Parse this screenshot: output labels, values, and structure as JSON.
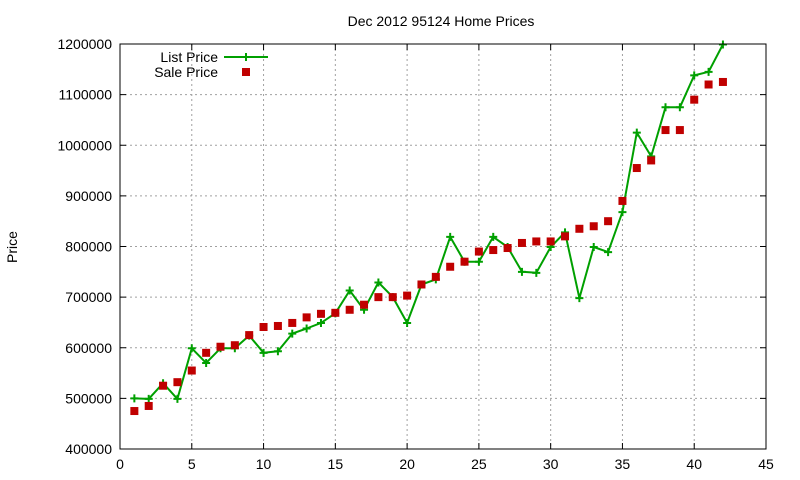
{
  "chart_data": {
    "type": "line",
    "title": "Dec 2012 95124 Home Prices",
    "xlabel": "",
    "ylabel": "Price",
    "xlim": [
      0,
      45
    ],
    "ylim": [
      400000,
      1200000
    ],
    "xticks": [
      0,
      5,
      10,
      15,
      20,
      25,
      30,
      35,
      40,
      45
    ],
    "yticks": [
      400000,
      500000,
      600000,
      700000,
      800000,
      900000,
      1000000,
      1100000,
      1200000
    ],
    "grid": true,
    "legend_position": "top-left",
    "series": [
      {
        "name": "List Price",
        "style": "line-plus",
        "color": "#00a000",
        "x": [
          1,
          2,
          3,
          4,
          5,
          6,
          7,
          8,
          9,
          10,
          11,
          12,
          13,
          14,
          15,
          16,
          17,
          18,
          19,
          20,
          21,
          22,
          23,
          24,
          25,
          26,
          27,
          28,
          29,
          30,
          31,
          32,
          33,
          34,
          35,
          36,
          37,
          38,
          39,
          40,
          41,
          42
        ],
        "y": [
          500000,
          499000,
          530000,
          499000,
          599000,
          570000,
          599000,
          599000,
          624000,
          590000,
          593000,
          628000,
          638000,
          649000,
          668000,
          713000,
          675000,
          729000,
          700000,
          649000,
          725000,
          735000,
          819000,
          770000,
          770000,
          819000,
          799000,
          750000,
          748000,
          799000,
          828000,
          698000,
          799000,
          789000,
          868000,
          1025000,
          978000,
          1075000,
          1075000,
          1138000,
          1145000,
          1199000
        ]
      },
      {
        "name": "Sale Price",
        "style": "square",
        "color": "#c00000",
        "x": [
          1,
          2,
          3,
          4,
          5,
          6,
          7,
          8,
          9,
          10,
          11,
          12,
          13,
          14,
          15,
          16,
          17,
          18,
          19,
          20,
          21,
          22,
          23,
          24,
          25,
          26,
          27,
          28,
          29,
          30,
          31,
          32,
          33,
          34,
          35,
          36,
          37,
          38,
          39,
          40,
          41,
          42
        ],
        "y": [
          475000,
          485000,
          525000,
          532000,
          555000,
          590000,
          602000,
          605000,
          625000,
          641000,
          643000,
          649000,
          660000,
          667000,
          669000,
          675000,
          685000,
          700000,
          700000,
          703000,
          725000,
          740000,
          760000,
          770000,
          790000,
          793000,
          797000,
          807000,
          810000,
          810000,
          820000,
          835000,
          840000,
          850000,
          890000,
          955000,
          970000,
          1030000,
          1030000,
          1090000,
          1120000,
          1125000
        ]
      }
    ]
  }
}
